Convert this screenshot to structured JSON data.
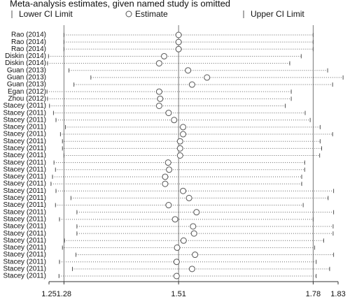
{
  "chart_data": {
    "type": "forest",
    "title": "Meta-analysis estimates, given named study is omitted",
    "categories": [
      "Rao (2014)",
      "Rao (2014)",
      "Rao (2014)",
      "Diskin (2014)",
      "Diskin (2014)",
      "Guan (2013)",
      "Guan (2013)",
      "Guan (2013)",
      "Egan (2012)",
      "Zhou (2012)",
      "Stacey (2011)",
      "Stacey (2011)",
      "Stacey (2011)",
      "Stacey (2011)",
      "Stacey (2011)",
      "Stacey (2011)",
      "Stacey (2011)",
      "Stacey (2011)",
      "Stacey (2011)",
      "Stacey (2011)",
      "Stacey (2011)",
      "Stacey (2011)",
      "Stacey (2011)",
      "Stacey (2011)",
      "Stacey (2011)",
      "Stacey (2011)",
      "Stacey (2011)",
      "Stacey (2011)",
      "Stacey (2011)",
      "Stacey (2011)",
      "Stacey (2011)",
      "Stacey (2011)",
      "Stacey (2011)",
      "Stacey (2011)",
      "Stacey (2011)"
    ],
    "series": [
      {
        "name": "Lower CI Limit",
        "color": "#555555",
        "values": [
          1.28,
          1.28,
          1.28,
          1.249,
          1.247,
          1.29,
          1.334,
          1.3,
          1.246,
          1.247,
          1.251,
          1.259,
          1.264,
          1.283,
          1.273,
          1.277,
          1.277,
          1.28,
          1.26,
          1.263,
          1.257,
          1.254,
          1.264,
          1.294,
          1.263,
          1.306,
          1.271,
          1.306,
          1.306,
          1.281,
          1.277,
          1.304,
          1.271,
          1.297,
          1.27
        ]
      },
      {
        "name": "Estimate",
        "color": "#555555",
        "values": [
          1.51,
          1.51,
          1.51,
          1.481,
          1.471,
          1.529,
          1.567,
          1.537,
          1.471,
          1.473,
          1.471,
          1.49,
          1.501,
          1.519,
          1.519,
          1.513,
          1.513,
          1.513,
          1.489,
          1.491,
          1.483,
          1.483,
          1.519,
          1.531,
          1.49,
          1.546,
          1.503,
          1.539,
          1.541,
          1.52,
          1.507,
          1.543,
          1.506,
          1.537,
          1.506
        ]
      },
      {
        "name": "Upper CI Limit",
        "color": "#555555",
        "values": [
          1.78,
          1.78,
          1.78,
          1.756,
          1.733,
          1.809,
          1.84,
          1.819,
          1.736,
          1.736,
          1.724,
          1.764,
          1.774,
          1.794,
          1.819,
          1.794,
          1.797,
          1.793,
          1.763,
          1.763,
          1.757,
          1.757,
          1.821,
          1.81,
          1.76,
          1.821,
          1.78,
          1.82,
          1.82,
          1.801,
          1.783,
          1.821,
          1.786,
          1.813,
          1.786
        ]
      }
    ],
    "xlim": [
      1.25,
      1.83
    ],
    "xticks": [
      1.25,
      1.28,
      1.51,
      1.78,
      1.83
    ],
    "reference_lines": [
      1.28,
      1.51,
      1.78
    ]
  }
}
